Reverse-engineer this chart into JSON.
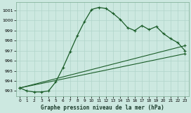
{
  "title": "Graphe pression niveau de la mer (hPa)",
  "background_color": "#cce8e0",
  "grid_color": "#b0d4ca",
  "line_color": "#1a5c28",
  "ylim": [
    992.5,
    1001.8
  ],
  "yticks": [
    993,
    994,
    995,
    996,
    997,
    998,
    999,
    1000,
    1001
  ],
  "xlim": [
    -0.5,
    23.5
  ],
  "xticks": [
    0,
    1,
    2,
    3,
    4,
    5,
    6,
    7,
    8,
    9,
    10,
    11,
    12,
    13,
    14,
    15,
    16,
    17,
    18,
    19,
    20,
    21,
    22,
    23
  ],
  "series1": [
    993.3,
    993.0,
    992.9,
    992.9,
    993.0,
    993.9,
    995.3,
    996.9,
    998.5,
    999.9,
    1001.1,
    1001.3,
    1001.2,
    1000.7,
    1000.1,
    999.3,
    999.0,
    999.5,
    999.1,
    999.4,
    998.7,
    998.2,
    997.8,
    997.0
  ],
  "series2_x": [
    0,
    23
  ],
  "series2_y": [
    993.3,
    996.7
  ],
  "series3_x": [
    0,
    23
  ],
  "series3_y": [
    993.3,
    997.5
  ]
}
